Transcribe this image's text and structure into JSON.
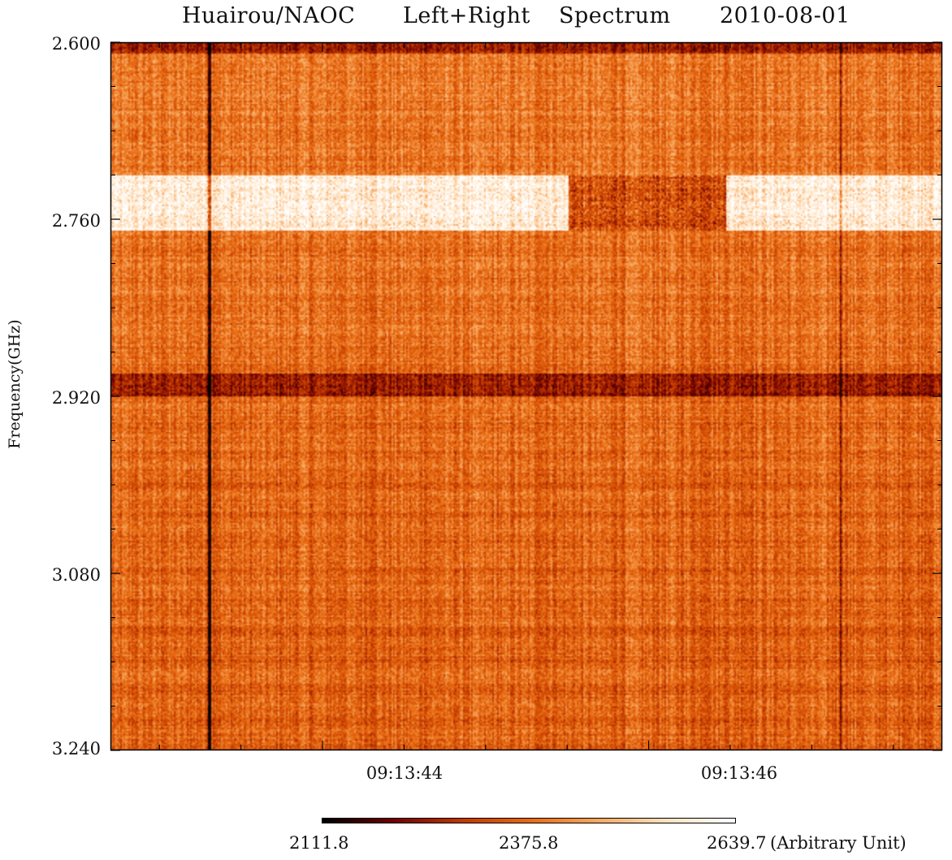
{
  "chart_data": {
    "type": "heatmap",
    "title_parts": [
      "Huairou/NAOC",
      "Left+Right",
      "Spectrum",
      "2010-08-01"
    ],
    "ylabel": "Frequency(GHz)",
    "xlabel": "",
    "yticks": [
      "2.600",
      "2.760",
      "2.920",
      "3.080",
      "3.240"
    ],
    "ytick_values": [
      2.6,
      2.76,
      2.92,
      3.08,
      3.24
    ],
    "ylim": [
      2.6,
      3.24
    ],
    "xticks": [
      "09:13:44",
      "09:13:46"
    ],
    "x_range_seconds": [
      42.7,
      47.8
    ],
    "colorbar": {
      "min_label": "2111.8",
      "mid_label": "2375.8",
      "max_label": "2639.7",
      "unit": "(Arbitrary Unit)",
      "min": 2111.8,
      "mid": 2375.8,
      "max": 2639.7,
      "colormap": "red-temperature",
      "colors": [
        "#000000",
        "#6e0000",
        "#c03800",
        "#e86a10",
        "#f7a860",
        "#ffe2c0",
        "#ffffff"
      ]
    },
    "features": {
      "bright_band_ghz": [
        2.72,
        2.77
      ],
      "dark_lane_ghz": [
        2.9,
        2.92
      ],
      "dark_top_row_ghz": [
        2.6,
        2.61
      ],
      "dark_vertical_line_time": "09:13:43.3",
      "typical_level": 2400,
      "bright_level": 2620
    }
  }
}
